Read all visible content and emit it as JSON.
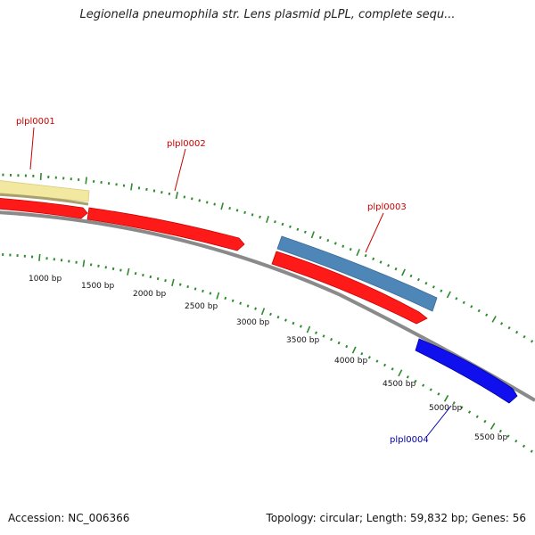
{
  "title": "Legionella pneumophila str. Lens plasmid pLPL, complete sequ...",
  "accession": "Accession: NC_006366",
  "topology": "Topology: circular; Length: 59,832 bp; Genes: 56",
  "colors": {
    "backbone": "#8a8a8a",
    "tick": "#2e8b2e",
    "gene_red": "#ff1a1a",
    "gene_steelblue": "#4f86b8",
    "gene_blue": "#1010ee",
    "gene_yellow": "#f3e8a0",
    "label_red": "#cc0000",
    "label_blue": "#0000aa"
  },
  "tick_labels": [
    "1000 bp",
    "1500 bp",
    "2000 bp",
    "2500 bp",
    "3000 bp",
    "3500 bp",
    "4000 bp",
    "4500 bp",
    "5000 bp",
    "5500 bp"
  ],
  "genes": [
    {
      "label": "plpl0001",
      "label_color": "label_red"
    },
    {
      "label": "plpl0002",
      "label_color": "label_red"
    },
    {
      "label": "plpl0003",
      "label_color": "label_red"
    },
    {
      "label": "plpl0004",
      "label_color": "label_blue"
    }
  ]
}
